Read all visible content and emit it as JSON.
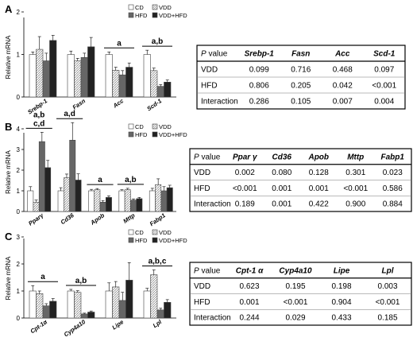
{
  "legend": [
    "CD",
    "VDD",
    "HFD",
    "VDD+HFD"
  ],
  "ylabel": "Relative mRNA",
  "table_header_first": "P value",
  "panels": [
    {
      "letter": "A",
      "ylim": [
        0,
        2
      ],
      "yticks": [
        "0",
        "1",
        "2"
      ],
      "categories": [
        "Srebp-1",
        "Fasn",
        "Acc",
        "Scd-1"
      ],
      "values": [
        [
          1.0,
          1.12,
          0.85,
          1.33
        ],
        [
          1.0,
          0.85,
          0.93,
          1.18
        ],
        [
          1.0,
          0.63,
          0.52,
          0.7
        ],
        [
          1.0,
          0.62,
          0.25,
          0.35
        ]
      ],
      "errors": [
        [
          0.06,
          0.3,
          0.18,
          0.12
        ],
        [
          0.08,
          0.06,
          0.1,
          0.22
        ],
        [
          0.06,
          0.07,
          0.1,
          0.1
        ],
        [
          0.1,
          0.06,
          0.04,
          0.05
        ]
      ],
      "annotations": [
        "",
        "",
        "a",
        "a,b"
      ],
      "table": {
        "columns": [
          "Srebp-1",
          "Fasn",
          "Acc",
          "Scd-1"
        ],
        "rows": [
          {
            "label": "VDD",
            "values": [
              "0.099",
              "0.716",
              "0.468",
              "0.097"
            ]
          },
          {
            "label": "HFD",
            "values": [
              "0.806",
              "0.205",
              "0.042",
              "<0.001"
            ]
          },
          {
            "label": "Interaction",
            "values": [
              "0.286",
              "0.105",
              "0.007",
              "0.004"
            ]
          }
        ]
      }
    },
    {
      "letter": "B",
      "ylim": [
        0,
        4
      ],
      "yticks": [
        "0",
        "1",
        "2",
        "3",
        "4"
      ],
      "categories": [
        "Pparγ",
        "Cd36",
        "Apob",
        "Mttp",
        "Fabp1"
      ],
      "values": [
        [
          1.0,
          0.45,
          3.38,
          2.12
        ],
        [
          1.0,
          1.63,
          3.45,
          1.52
        ],
        [
          1.0,
          1.05,
          0.45,
          0.68
        ],
        [
          1.0,
          1.05,
          0.55,
          0.62
        ],
        [
          1.0,
          1.3,
          1.0,
          1.15
        ]
      ],
      "errors": [
        [
          0.2,
          0.1,
          0.45,
          0.35
        ],
        [
          0.15,
          0.18,
          0.85,
          0.3
        ],
        [
          0.07,
          0.06,
          0.08,
          0.08
        ],
        [
          0.05,
          0.07,
          0.06,
          0.06
        ],
        [
          0.12,
          0.28,
          0.2,
          0.12
        ]
      ],
      "annotations": [
        "a,b\nc,d",
        "a,d",
        "a",
        "a,b",
        ""
      ],
      "table": {
        "columns": [
          "Ppar γ",
          "Cd36",
          "Apob",
          "Mttp",
          "Fabp1"
        ],
        "rows": [
          {
            "label": "VDD",
            "values": [
              "0.002",
              "0.080",
              "0.128",
              "0.301",
              "0.023"
            ]
          },
          {
            "label": "HFD",
            "values": [
              "<0.001",
              "0.001",
              "0.001",
              "<0.001",
              "0.586"
            ]
          },
          {
            "label": "Interaction",
            "values": [
              "0.189",
              "0.001",
              "0.422",
              "0.900",
              "0.884"
            ]
          }
        ]
      }
    },
    {
      "letter": "C",
      "ylim": [
        0,
        3
      ],
      "yticks": [
        "0",
        "1",
        "2",
        "3"
      ],
      "categories": [
        "Cpt-1α",
        "Cyp4a10",
        "Lipe",
        "Lpl"
      ],
      "values": [
        [
          1.0,
          0.9,
          0.45,
          0.62
        ],
        [
          1.0,
          0.95,
          0.15,
          0.22
        ],
        [
          1.0,
          1.15,
          0.65,
          1.4
        ],
        [
          1.0,
          1.6,
          0.3,
          0.58
        ]
      ],
      "errors": [
        [
          0.2,
          0.1,
          0.08,
          0.1
        ],
        [
          0.06,
          0.06,
          0.03,
          0.04
        ],
        [
          0.3,
          0.2,
          0.3,
          0.65
        ],
        [
          0.1,
          0.18,
          0.06,
          0.1
        ]
      ],
      "annotations": [
        "a",
        "a,b",
        "",
        "a,b,c"
      ],
      "table": {
        "columns": [
          "Cpt-1 α",
          "Cyp4a10",
          "Lipe",
          "Lpl"
        ],
        "rows": [
          {
            "label": "VDD",
            "values": [
              "0.623",
              "0.195",
              "0.198",
              "0.003"
            ]
          },
          {
            "label": "HFD",
            "values": [
              "0.001",
              "<0.001",
              "0.904",
              "<0.001"
            ]
          },
          {
            "label": "Interaction",
            "values": [
              "0.244",
              "0.029",
              "0.433",
              "0.185"
            ]
          }
        ]
      }
    }
  ],
  "chart_data": [
    {
      "type": "bar",
      "categories": [
        "Srebp-1",
        "Fasn",
        "Acc",
        "Scd-1"
      ],
      "ylabel": "Relative mRNA",
      "ylim": [
        0,
        2
      ],
      "series": [
        {
          "name": "CD",
          "values": [
            1.0,
            1.0,
            1.0,
            1.0
          ]
        },
        {
          "name": "VDD",
          "values": [
            1.12,
            0.85,
            0.63,
            0.62
          ]
        },
        {
          "name": "HFD",
          "values": [
            0.85,
            0.93,
            0.52,
            0.25
          ]
        },
        {
          "name": "VDD+HFD",
          "values": [
            1.33,
            1.18,
            0.7,
            0.35
          ]
        }
      ]
    },
    {
      "type": "bar",
      "categories": [
        "Pparγ",
        "Cd36",
        "Apob",
        "Mttp",
        "Fabp1"
      ],
      "ylabel": "Relative mRNA",
      "ylim": [
        0,
        4
      ],
      "series": [
        {
          "name": "CD",
          "values": [
            1.0,
            1.0,
            1.0,
            1.0,
            1.0
          ]
        },
        {
          "name": "VDD",
          "values": [
            0.45,
            1.63,
            1.05,
            1.05,
            1.3
          ]
        },
        {
          "name": "HFD",
          "values": [
            3.38,
            3.45,
            0.45,
            0.55,
            1.0
          ]
        },
        {
          "name": "VDD+HFD",
          "values": [
            2.12,
            1.52,
            0.68,
            0.62,
            1.15
          ]
        }
      ]
    },
    {
      "type": "bar",
      "categories": [
        "Cpt-1α",
        "Cyp4a10",
        "Lipe",
        "Lpl"
      ],
      "ylabel": "Relative mRNA",
      "ylim": [
        0,
        3
      ],
      "series": [
        {
          "name": "CD",
          "values": [
            1.0,
            1.0,
            1.0,
            1.0
          ]
        },
        {
          "name": "VDD",
          "values": [
            0.9,
            0.95,
            1.15,
            1.6
          ]
        },
        {
          "name": "HFD",
          "values": [
            0.45,
            0.15,
            0.65,
            0.3
          ]
        },
        {
          "name": "VDD+HFD",
          "values": [
            0.62,
            0.22,
            1.4,
            0.58
          ]
        }
      ]
    }
  ]
}
